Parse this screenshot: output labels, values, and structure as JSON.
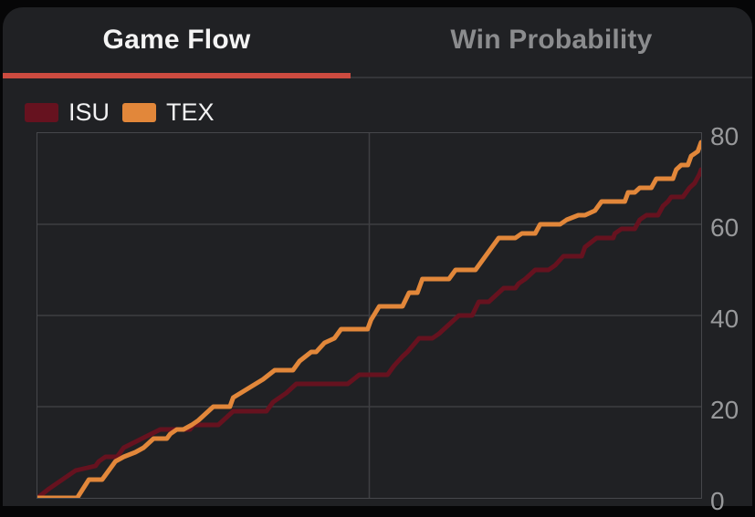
{
  "tabs": [
    {
      "label": "Game Flow",
      "active": true
    },
    {
      "label": "Win Probability",
      "active": false
    }
  ],
  "colors": {
    "accent_underline": "#cc4b40",
    "card_background": "#202124",
    "gridline": "#3e3f42",
    "axis_label": "#98999b",
    "isu": "#66121f",
    "tex": "#e2873a"
  },
  "legend": {
    "items": [
      {
        "label": "ISU",
        "color": "#66121f"
      },
      {
        "label": "TEX",
        "color": "#e2873a"
      }
    ]
  },
  "chart_data": {
    "type": "line",
    "title": "Game Flow",
    "xlabel": "",
    "ylabel": "",
    "x_axis": {
      "min": 0,
      "max": 40,
      "gridlines": [
        20
      ]
    },
    "y_axis": {
      "min": 0,
      "max": 80,
      "ticks": [
        80,
        60,
        40,
        20,
        0
      ],
      "side": "right"
    },
    "grid": true,
    "legend_position": "top-left",
    "series": [
      {
        "name": "ISU",
        "color": "#66121f",
        "points": [
          [
            0,
            0
          ],
          [
            0.7,
            2
          ],
          [
            1.9,
            5
          ],
          [
            2.3,
            6
          ],
          [
            3.5,
            7
          ],
          [
            3.7,
            8
          ],
          [
            4.1,
            9
          ],
          [
            4.8,
            9
          ],
          [
            5.2,
            11
          ],
          [
            6.3,
            13
          ],
          [
            7.4,
            15
          ],
          [
            9.2,
            15
          ],
          [
            9.4,
            16
          ],
          [
            10.9,
            16
          ],
          [
            11.8,
            19
          ],
          [
            13.8,
            19
          ],
          [
            14.2,
            21
          ],
          [
            15.0,
            23
          ],
          [
            15.6,
            25
          ],
          [
            18.7,
            25
          ],
          [
            19.4,
            27
          ],
          [
            21.1,
            27
          ],
          [
            21.5,
            29
          ],
          [
            22.0,
            31
          ],
          [
            22.3,
            32
          ],
          [
            23.0,
            35
          ],
          [
            23.8,
            35
          ],
          [
            24.2,
            36
          ],
          [
            24.8,
            38
          ],
          [
            25.4,
            40
          ],
          [
            26.2,
            40
          ],
          [
            26.6,
            43
          ],
          [
            27.2,
            43
          ],
          [
            27.5,
            44
          ],
          [
            28.1,
            46
          ],
          [
            28.8,
            46
          ],
          [
            29.0,
            47
          ],
          [
            29.4,
            48
          ],
          [
            30.0,
            50
          ],
          [
            30.8,
            50
          ],
          [
            31.2,
            51
          ],
          [
            31.7,
            53
          ],
          [
            32.8,
            53
          ],
          [
            33.0,
            55
          ],
          [
            33.7,
            57
          ],
          [
            34.7,
            57
          ],
          [
            34.8,
            58
          ],
          [
            35.2,
            59
          ],
          [
            36.0,
            59
          ],
          [
            36.3,
            61
          ],
          [
            36.7,
            62
          ],
          [
            37.4,
            62
          ],
          [
            37.7,
            64
          ],
          [
            38.0,
            65
          ],
          [
            38.2,
            66
          ],
          [
            38.9,
            66
          ],
          [
            39.1,
            67
          ],
          [
            39.3,
            68
          ],
          [
            39.6,
            69
          ],
          [
            39.9,
            71
          ],
          [
            40,
            72
          ]
        ]
      },
      {
        "name": "TEX",
        "color": "#e2873a",
        "points": [
          [
            0,
            0
          ],
          [
            2.4,
            0
          ],
          [
            3.1,
            4
          ],
          [
            3.9,
            4
          ],
          [
            4.3,
            6
          ],
          [
            4.7,
            8
          ],
          [
            5.2,
            9
          ],
          [
            5.9,
            10
          ],
          [
            6.4,
            11
          ],
          [
            6.7,
            12
          ],
          [
            7.0,
            13
          ],
          [
            7.8,
            13
          ],
          [
            8.0,
            14
          ],
          [
            8.4,
            15
          ],
          [
            8.8,
            15
          ],
          [
            9.3,
            16
          ],
          [
            9.7,
            17
          ],
          [
            10.3,
            19
          ],
          [
            10.6,
            20
          ],
          [
            11.6,
            20
          ],
          [
            11.8,
            22
          ],
          [
            12.7,
            24
          ],
          [
            13.6,
            26
          ],
          [
            14.3,
            28
          ],
          [
            15.4,
            28
          ],
          [
            15.8,
            30
          ],
          [
            16.5,
            32
          ],
          [
            16.8,
            32
          ],
          [
            17.3,
            34
          ],
          [
            17.9,
            35
          ],
          [
            18.3,
            37
          ],
          [
            19.9,
            37
          ],
          [
            20.1,
            39
          ],
          [
            20.6,
            42
          ],
          [
            22.0,
            42
          ],
          [
            22.4,
            45
          ],
          [
            22.9,
            45
          ],
          [
            23.2,
            48
          ],
          [
            24.8,
            48
          ],
          [
            25.2,
            50
          ],
          [
            26.4,
            50
          ],
          [
            26.6,
            51
          ],
          [
            27.0,
            53
          ],
          [
            27.4,
            55
          ],
          [
            27.8,
            57
          ],
          [
            28.8,
            57
          ],
          [
            29.2,
            58
          ],
          [
            30.0,
            58
          ],
          [
            30.3,
            60
          ],
          [
            31.5,
            60
          ],
          [
            31.9,
            61
          ],
          [
            32.6,
            62
          ],
          [
            33.0,
            62
          ],
          [
            33.6,
            63
          ],
          [
            34.0,
            65
          ],
          [
            35.4,
            65
          ],
          [
            35.6,
            67
          ],
          [
            36.0,
            67
          ],
          [
            36.3,
            68
          ],
          [
            37.0,
            68
          ],
          [
            37.3,
            70
          ],
          [
            38.3,
            70
          ],
          [
            38.5,
            72
          ],
          [
            38.8,
            73
          ],
          [
            39.2,
            73
          ],
          [
            39.4,
            75
          ],
          [
            39.8,
            76
          ],
          [
            40,
            78
          ]
        ]
      }
    ]
  }
}
